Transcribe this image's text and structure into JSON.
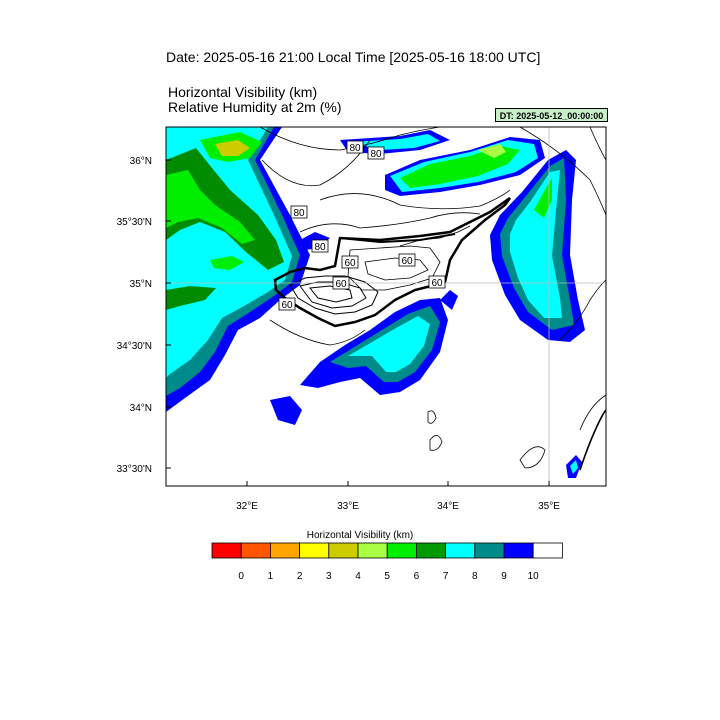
{
  "header": {
    "date_title": "Date: 2025-05-16  21:00 Local Time [2025-05-16  18:00 UTC]",
    "line1": "Horizontal Visibility   (km)",
    "line2": "Relative Humidity at 2m   (%)",
    "dt_badge": "DT: 2025-05-12_00:00:00"
  },
  "axes": {
    "lat_labels": [
      "36°N",
      "35°30'N",
      "35°N",
      "34°30'N",
      "34°N",
      "33°30'N"
    ],
    "lon_labels": [
      "32°E",
      "33°E",
      "34°E",
      "35°E"
    ]
  },
  "contour_labels": [
    "80",
    "80",
    "80",
    "80",
    "60",
    "60",
    "60",
    "60",
    "60"
  ],
  "legend": {
    "title": "Horizontal Visibility  (km)",
    "tick_labels": [
      "0",
      "1",
      "2",
      "3",
      "4",
      "5",
      "6",
      "7",
      "8",
      "9",
      "10"
    ],
    "colors": [
      "#ff0000",
      "#ff5500",
      "#ffa500",
      "#ffff00",
      "#cccc00",
      "#aaff44",
      "#00ee00",
      "#009900",
      "#00ffff",
      "#008b8b",
      "#0000ff",
      "#ffffff"
    ]
  },
  "fill_colors": {
    "blue": "#0000ff",
    "teal": "#008b8b",
    "cyan": "#00ffff",
    "darkgreen": "#008b00",
    "green": "#00ee00",
    "lightgreen": "#aaff44",
    "olive": "#cccc00"
  }
}
